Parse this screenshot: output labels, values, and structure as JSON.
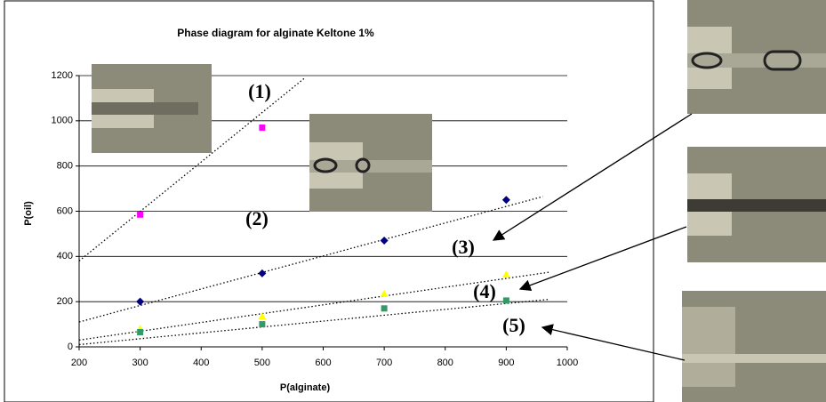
{
  "chart_data": {
    "type": "scatter",
    "title": "Phase diagram for alginate Keltone 1%",
    "xlabel": "P(alginate)",
    "ylabel": "P(oil)",
    "xlim": [
      200,
      1000
    ],
    "xticks": [
      200,
      300,
      400,
      500,
      600,
      700,
      800,
      900,
      1000
    ],
    "ylim": [
      0,
      1200
    ],
    "yticks": [
      0,
      200,
      400,
      600,
      800,
      1000,
      1200
    ],
    "grid": true,
    "series": [
      {
        "color": "#ff00ff",
        "marker": "square",
        "x": [
          300,
          500
        ],
        "values": [
          585,
          970
        ]
      },
      {
        "color": "#000080",
        "marker": "diamond",
        "x": [
          300,
          500,
          700,
          900
        ],
        "values": [
          200,
          325,
          470,
          650
        ]
      },
      {
        "color": "#ffff00",
        "marker": "triangle",
        "x": [
          300,
          500,
          700,
          900
        ],
        "values": [
          80,
          135,
          235,
          320
        ]
      },
      {
        "color": "#339966",
        "marker": "square",
        "x": [
          300,
          500,
          700,
          900
        ],
        "values": [
          65,
          100,
          170,
          205
        ]
      }
    ],
    "trendlines": [
      {
        "x": [
          200,
          570
        ],
        "values": [
          380,
          1190
        ]
      },
      {
        "x": [
          200,
          960
        ],
        "values": [
          110,
          665
        ]
      },
      {
        "x": [
          200,
          970
        ],
        "values": [
          30,
          330
        ]
      },
      {
        "x": [
          200,
          970
        ],
        "values": [
          10,
          210
        ]
      }
    ],
    "annotations": [
      "(1)",
      "(2)",
      "(3)",
      "(4)",
      "(5)"
    ]
  }
}
